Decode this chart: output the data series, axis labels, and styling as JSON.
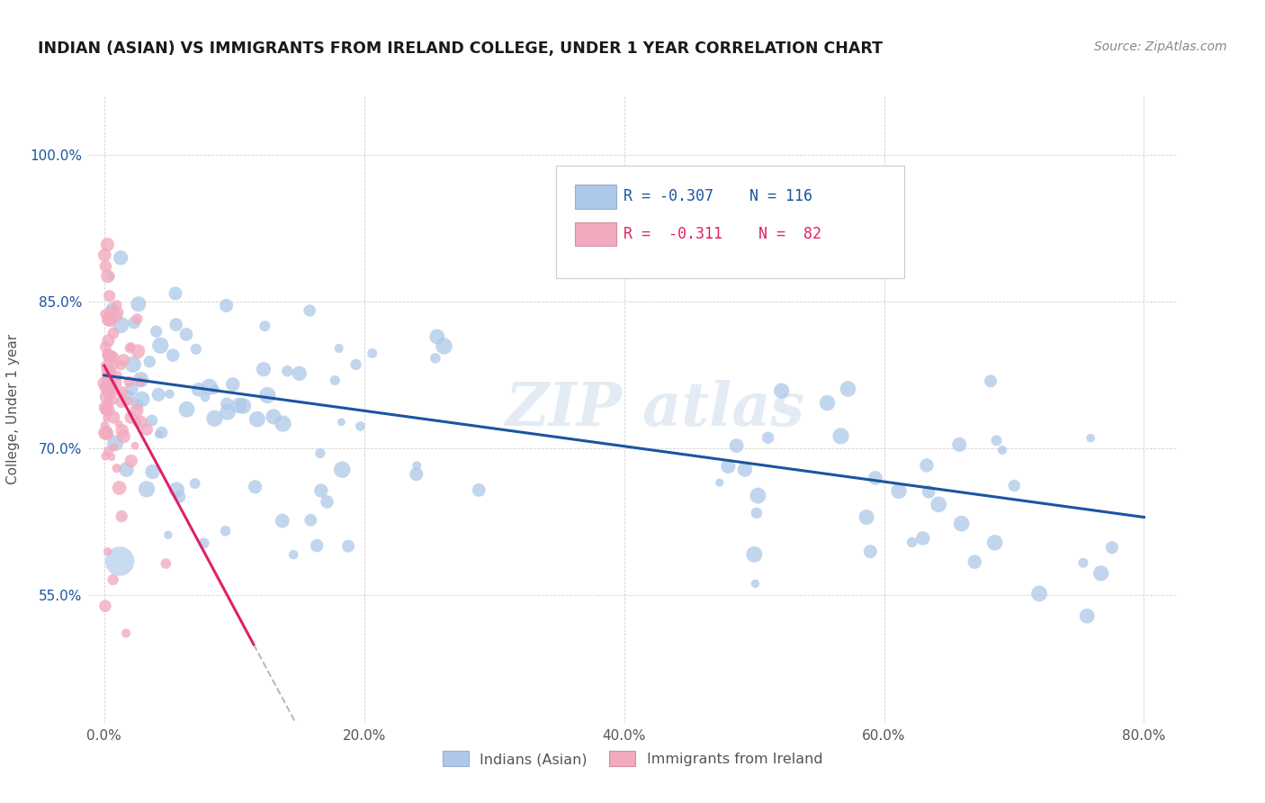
{
  "title": "INDIAN (ASIAN) VS IMMIGRANTS FROM IRELAND COLLEGE, UNDER 1 YEAR CORRELATION CHART",
  "source": "Source: ZipAtlas.com",
  "ylabel_label": "College, Under 1 year",
  "legend_label1": "Indians (Asian)",
  "legend_label2": "Immigrants from Ireland",
  "R1": -0.307,
  "N1": 116,
  "R2": -0.311,
  "N2": 82,
  "color1": "#adc8e8",
  "color2": "#f2aabf",
  "line_color1": "#1b55a0",
  "line_color2": "#e0206a",
  "watermark": "ZIP atlas",
  "background_color": "#ffffff",
  "xlim": [
    -0.012,
    0.825
  ],
  "ylim": [
    0.42,
    1.06
  ],
  "x_tick_positions": [
    0.0,
    0.2,
    0.4,
    0.6,
    0.8
  ],
  "y_tick_positions": [
    0.55,
    0.7,
    0.85,
    1.0
  ],
  "x_tick_labels": [
    "0.0%",
    "20.0%",
    "40.0%",
    "60.0%",
    "80.0%"
  ],
  "y_tick_labels": [
    "55.0%",
    "70.0%",
    "85.0%",
    "100.0%"
  ]
}
